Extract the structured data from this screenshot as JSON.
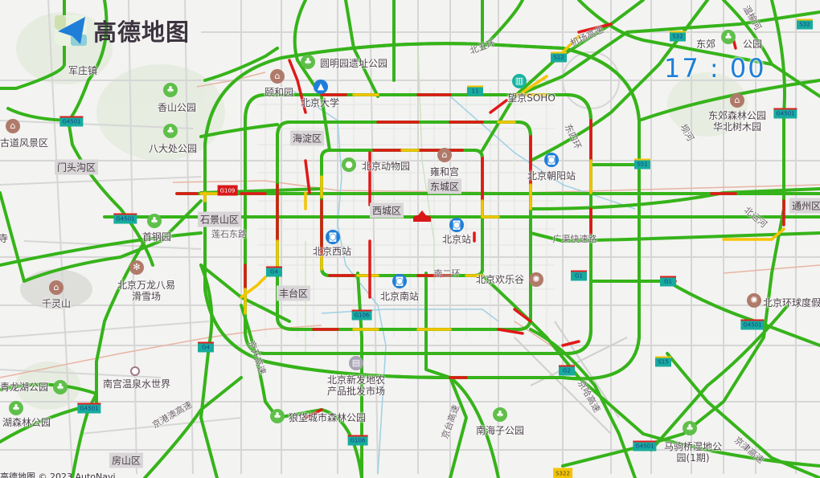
{
  "app": {
    "logo_text": "高德地图",
    "clock": "17 : 00",
    "copyright": "高德地图 © 2023 AutoNavi"
  },
  "colors": {
    "smooth": "#36b31a",
    "slow": "#f5c400",
    "congested": "#e01818",
    "clock": "#1f7fd8",
    "shield": "#17ab9e"
  },
  "districts": [
    "门头沟区",
    "石景山区",
    "海淀区",
    "东城区",
    "西城区",
    "丰台区",
    "房山区",
    "通州区"
  ],
  "places": [
    {
      "name": "军庄镇"
    },
    {
      "name": "香山公园",
      "icon": "park-icon"
    },
    {
      "name": "八大处公园",
      "icon": "park-icon"
    },
    {
      "name": "古道风景区",
      "icon": "scenic-icon"
    },
    {
      "name": "首钢园",
      "icon": "park-icon"
    },
    {
      "name": "颐和园",
      "icon": "scenic-icon"
    },
    {
      "name": "圆明园遗址公园",
      "icon": "park-icon"
    },
    {
      "name": "北京大学",
      "icon": "school-icon"
    },
    {
      "name": "北京动物园",
      "icon": "zoo-icon"
    },
    {
      "name": "雍和宫",
      "icon": "scenic-icon"
    },
    {
      "name": "北京站",
      "icon": "train-station-icon"
    },
    {
      "name": "北京西站",
      "icon": "train-station-icon"
    },
    {
      "name": "北京朝阳站",
      "icon": "train-station-icon"
    },
    {
      "name": "望京SOHO",
      "icon": "building-icon"
    },
    {
      "name": "东郊森林公园华北树木园",
      "icon": "scenic-icon"
    },
    {
      "name": "北京万龙八易滑雪场",
      "icon": "ski-icon"
    },
    {
      "name": "千灵山",
      "icon": "scenic-icon"
    },
    {
      "name": "北京南站",
      "icon": "train-station-icon"
    },
    {
      "name": "北京欢乐谷",
      "icon": "amusement-park-icon"
    },
    {
      "name": "北京新发地农产品批发市场",
      "icon": "market-icon"
    },
    {
      "name": "青龙湖公园",
      "icon": "park-icon"
    },
    {
      "name": "湖森林公园",
      "icon": "park-icon"
    },
    {
      "name": "南宫温泉水世界",
      "icon": "poi-dot-icon"
    },
    {
      "name": "狼垡城市森林公园",
      "icon": "park-icon"
    },
    {
      "name": "南海子公园",
      "icon": "park-icon"
    },
    {
      "name": "北京环球度假",
      "icon": "amusement-park-icon"
    },
    {
      "name": "马驹桥湿地公园(1期)",
      "icon": "park-icon"
    },
    {
      "name": "寺"
    },
    {
      "name": "东郊"
    },
    {
      "name": "公园"
    }
  ],
  "road_names": [
    "莲石东路",
    "广渠快速路",
    "南二环",
    "北五环",
    "东四环",
    "机场高速",
    "京港澳高速",
    "京开高速",
    "北运河",
    "京津高速",
    "京哈高速",
    "温榆河",
    "坝河",
    "京台高速"
  ],
  "shields": [
    "G4501",
    "G4501",
    "G109",
    "G4",
    "G4",
    "G4501",
    "G106",
    "G106",
    "G1",
    "G1",
    "G4501",
    "S15",
    "G2",
    "G4501",
    "S322",
    "G4501",
    "S51",
    "S12",
    "S32",
    "S32",
    "11"
  ]
}
